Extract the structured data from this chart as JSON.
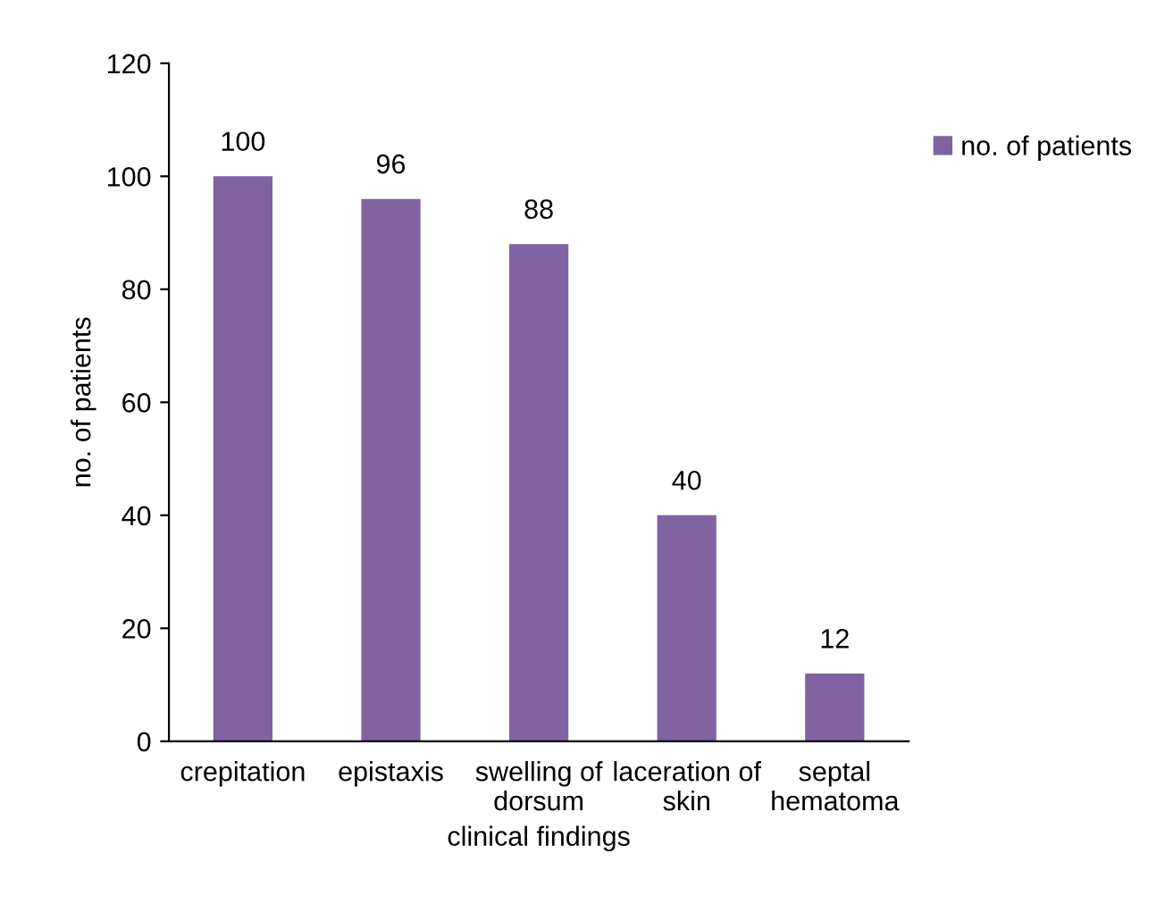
{
  "chart_data": {
    "type": "bar",
    "xlabel": "clinical findings",
    "ylabel": "no. of patients",
    "categories": [
      "crepitation",
      "epistaxis",
      "swelling of\ndorsum",
      "laceration of\nskin",
      "septal\nhematoma"
    ],
    "series": [
      {
        "name": "no. of patients",
        "color": "#8064a2",
        "values": [
          100,
          96,
          88,
          40,
          12
        ]
      }
    ],
    "ylim": [
      0,
      120
    ],
    "yticks": [
      0,
      20,
      40,
      60,
      80,
      100,
      120
    ],
    "data_labels": true,
    "grid": false,
    "legend": "top right"
  }
}
